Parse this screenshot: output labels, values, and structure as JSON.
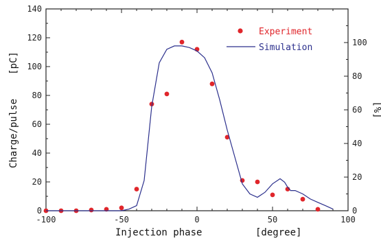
{
  "chart_data": {
    "type": "scatter",
    "xlabel": "Injection phase",
    "xlabel_unit": "[degree]",
    "ylabel_left": "Charge/pulse",
    "ylabel_left_unit": "[pC]",
    "ylabel_right": "[%]",
    "xlim": [
      -100,
      100
    ],
    "ylim_left": [
      0,
      140
    ],
    "ylim_right": [
      0,
      120
    ],
    "x_ticks": [
      "-100",
      "-50",
      "0",
      "50",
      "100"
    ],
    "y_left_ticks": [
      "0",
      "20",
      "40",
      "60",
      "80",
      "100",
      "120",
      "140"
    ],
    "y_right_ticks": [
      "0",
      "20",
      "40",
      "60",
      "80",
      "100"
    ],
    "legend_position": "top-right",
    "grid": false,
    "series": [
      {
        "name": "Experiment",
        "kind": "points",
        "color": "#e0262b",
        "axis": "left",
        "x": [
          -100,
          -90,
          -80,
          -70,
          -60,
          -50,
          -40,
          -30,
          -20,
          -10,
          0,
          10,
          20,
          30,
          40,
          50,
          60,
          70,
          80
        ],
        "y": [
          0,
          0,
          0,
          0.5,
          1,
          2,
          15,
          74,
          81,
          117,
          112,
          88,
          51,
          21,
          20,
          11,
          15,
          8,
          1
        ]
      },
      {
        "name": "Simulation",
        "kind": "line",
        "color": "#2b2f8c",
        "axis": "right",
        "x": [
          -100,
          -90,
          -80,
          -70,
          -60,
          -50,
          -45,
          -40,
          -35,
          -30,
          -25,
          -20,
          -15,
          -10,
          -5,
          0,
          5,
          10,
          15,
          20,
          25,
          30,
          35,
          40,
          45,
          50,
          55,
          58,
          60,
          62,
          65,
          70,
          75,
          80,
          85,
          90
        ],
        "y": [
          0,
          0,
          0,
          0,
          0,
          0,
          1,
          3,
          18,
          62,
          88,
          96,
          98,
          98,
          97,
          95,
          91,
          82,
          66,
          48,
          32,
          16,
          10,
          8,
          11,
          16,
          19,
          17,
          14,
          12,
          12,
          10,
          7,
          5,
          3,
          1
        ]
      }
    ]
  }
}
